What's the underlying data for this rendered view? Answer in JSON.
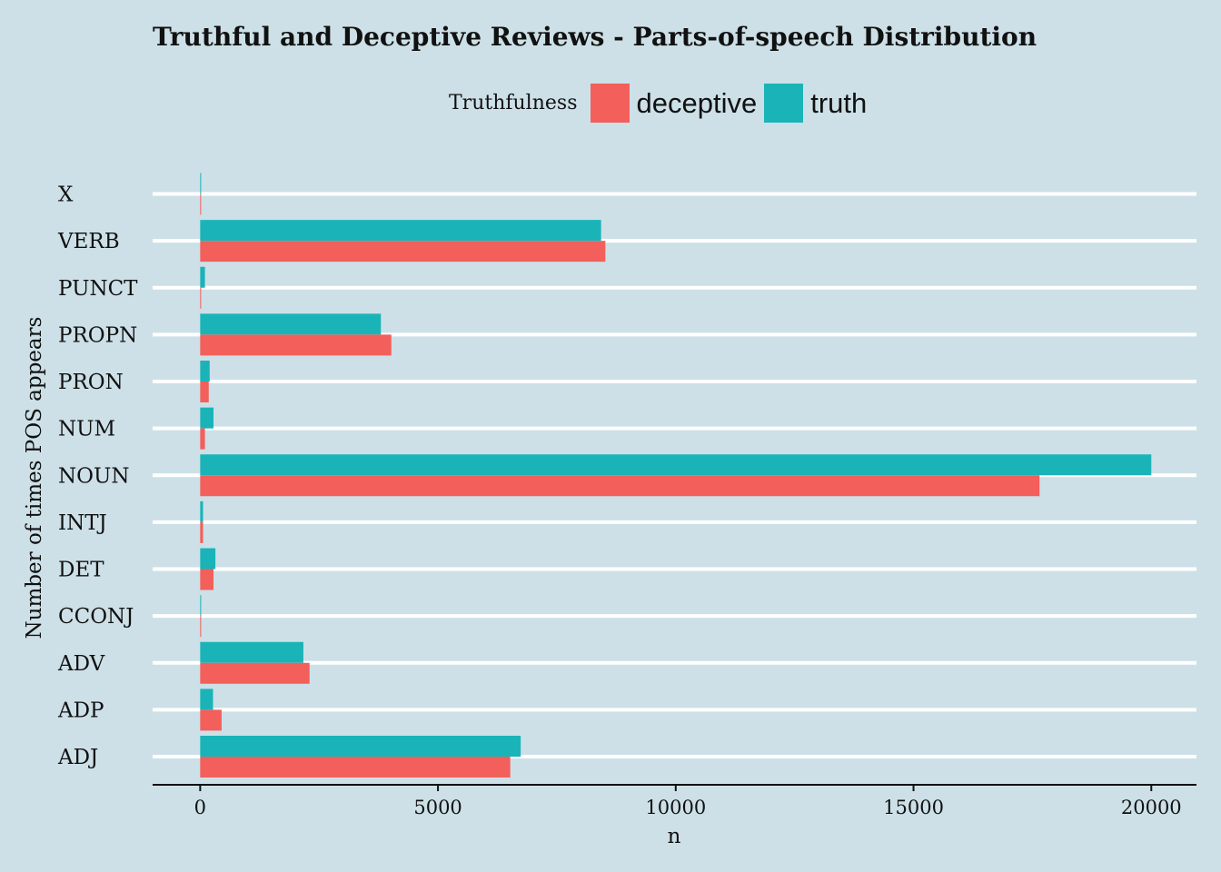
{
  "chart_data": {
    "type": "bar",
    "orientation": "horizontal",
    "title": "Truthful and Deceptive Reviews - Parts-of-speech Distribution",
    "xlabel": "n",
    "ylabel": "Number of times POS appears",
    "categories": [
      "ADJ",
      "ADP",
      "ADV",
      "CCONJ",
      "DET",
      "INTJ",
      "NOUN",
      "NUM",
      "PRON",
      "PROPN",
      "PUNCT",
      "VERB",
      "X"
    ],
    "series": [
      {
        "name": "deceptive",
        "color": "#f35f5b",
        "values": [
          6520,
          450,
          2300,
          20,
          280,
          60,
          17650,
          100,
          180,
          4020,
          20,
          8520,
          5
        ]
      },
      {
        "name": "truth",
        "color": "#1ab4b8",
        "values": [
          6740,
          270,
          2170,
          20,
          320,
          60,
          20000,
          280,
          200,
          3800,
          100,
          8430,
          20
        ]
      }
    ],
    "xlim": [
      -1000,
      20950
    ],
    "xticks": [
      0,
      5000,
      10000,
      15000,
      20000
    ],
    "xtick_labels": [
      "0",
      "5000",
      "10000",
      "15000",
      "20000"
    ],
    "legend": {
      "title": "Truthfulness",
      "position": "top"
    },
    "grid": "major horizontal lines"
  }
}
